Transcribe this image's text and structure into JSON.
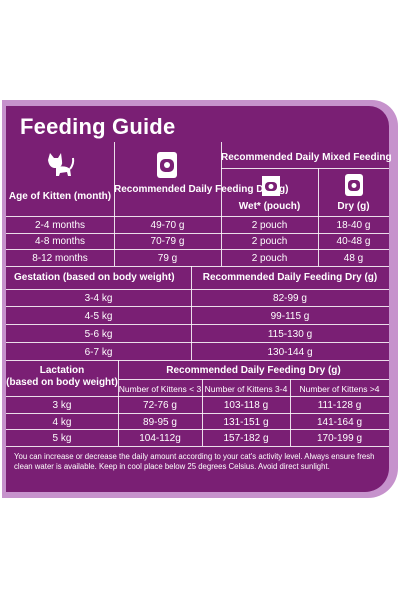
{
  "title": "Feeding Guide",
  "kitten": {
    "col_age": "Age of Kitten (month)",
    "col_dry": "Recommended Daily Feeding Dry (g)",
    "mixed_header": "Recommended Daily Mixed Feeding",
    "col_wet": "Wet* (pouch)",
    "col_mixed_dry": "Dry (g)",
    "rows": [
      {
        "age": "2-4 months",
        "dry": "49-70 g",
        "wet": "2 pouch",
        "mixed_dry": "18-40 g"
      },
      {
        "age": "4-8 months",
        "dry": "70-79 g",
        "wet": "2 pouch",
        "mixed_dry": "40-48 g"
      },
      {
        "age": "8-12 months",
        "dry": "79 g",
        "wet": "2 pouch",
        "mixed_dry": "48 g"
      }
    ]
  },
  "gestation": {
    "col_weight": "Gestation (based on body weight)",
    "col_dry": "Recommended Daily Feeding Dry (g)",
    "rows": [
      {
        "weight": "3-4 kg",
        "dry": "82-99 g"
      },
      {
        "weight": "4-5 kg",
        "dry": "99-115 g"
      },
      {
        "weight": "5-6 kg",
        "dry": "115-130 g"
      },
      {
        "weight": "6-7 kg",
        "dry": "130-144 g"
      }
    ]
  },
  "lactation": {
    "col_weight_line1": "Lactation",
    "col_weight_line2": "(based on body weight)",
    "col_header": "Recommended Daily Feeding Dry (g)",
    "sub1": "Number of Kittens < 3",
    "sub2": "Number of Kittens 3-4",
    "sub3": "Number of Kittens >4",
    "rows": [
      {
        "weight": "3 kg",
        "a": "72-76 g",
        "b": "103-118 g",
        "c": "111-128 g"
      },
      {
        "weight": "4 kg",
        "a": "89-95 g",
        "b": "131-151 g",
        "c": "141-164 g"
      },
      {
        "weight": "5 kg",
        "a": "104-112g",
        "b": "157-182 g",
        "c": "170-199 g"
      }
    ]
  },
  "note": "You can increase or decrease the daily amount according to your cat's activity level. Always ensure fresh clean water is available. Keep in cool place below 25 degrees Celsius. Avoid direct sunlight.",
  "icons": [
    "kitten-icon",
    "dry-food-bag-icon",
    "wet-pouch-icon",
    "dry-food-bag-icon"
  ],
  "colors": {
    "panel": "#7a1f74",
    "frame": "#c692cc",
    "text": "#ffffff"
  }
}
